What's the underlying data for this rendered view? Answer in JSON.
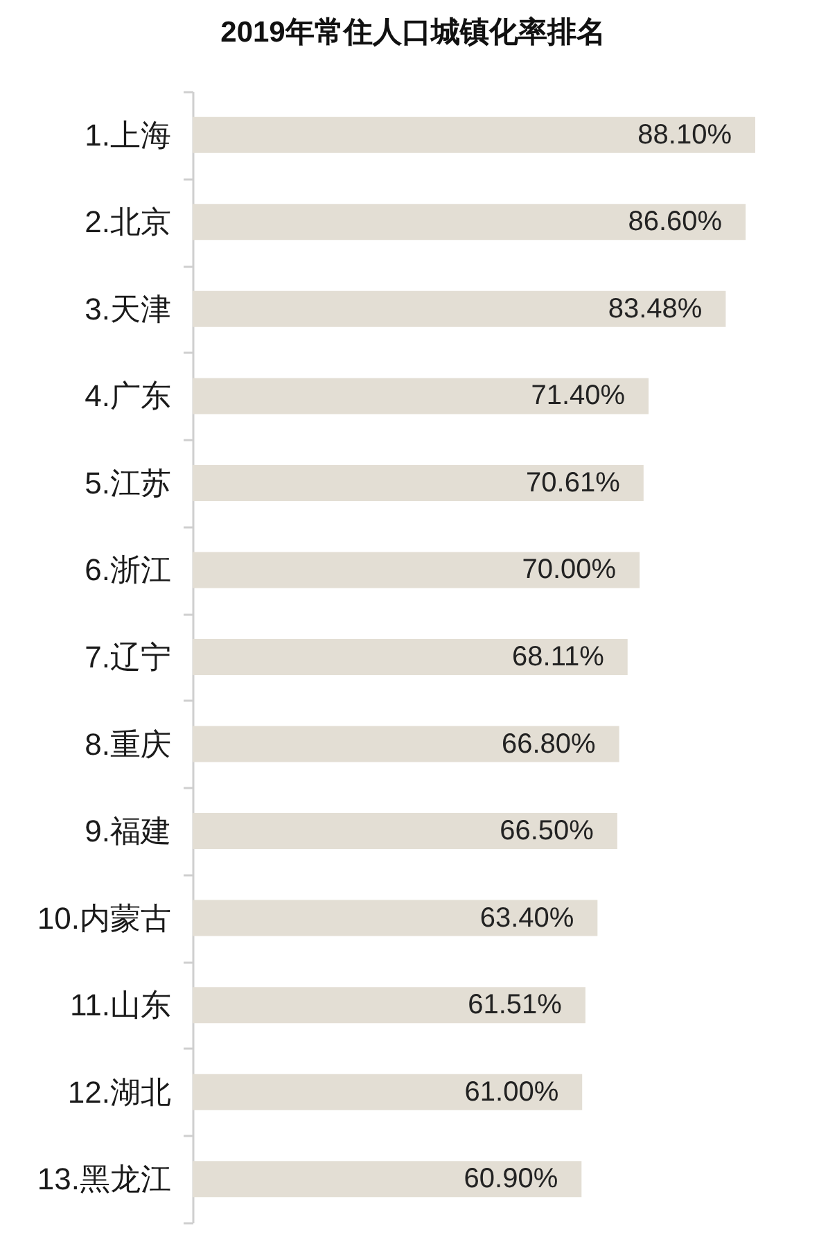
{
  "chart_data": {
    "type": "bar",
    "orientation": "horizontal",
    "title": "2019年常住人口城镇化率排名",
    "categories": [
      "1.上海",
      "2.北京",
      "3.天津",
      "4.广东",
      "5.江苏",
      "6.浙江",
      "7.辽宁",
      "8.重庆",
      "9.福建",
      "10.内蒙古",
      "11.山东",
      "12.湖北",
      "13.黑龙江"
    ],
    "values": [
      88.1,
      86.6,
      83.48,
      71.4,
      70.61,
      70.0,
      68.11,
      66.8,
      66.5,
      63.4,
      61.51,
      61.0,
      60.9
    ],
    "value_labels": [
      "88.10%",
      "86.60%",
      "83.48%",
      "71.40%",
      "70.61%",
      "70.00%",
      "68.11%",
      "66.80%",
      "66.50%",
      "63.40%",
      "61.51%",
      "61.00%",
      "60.90%"
    ],
    "color": "#e3ded4",
    "tick_labels": "y"
  }
}
